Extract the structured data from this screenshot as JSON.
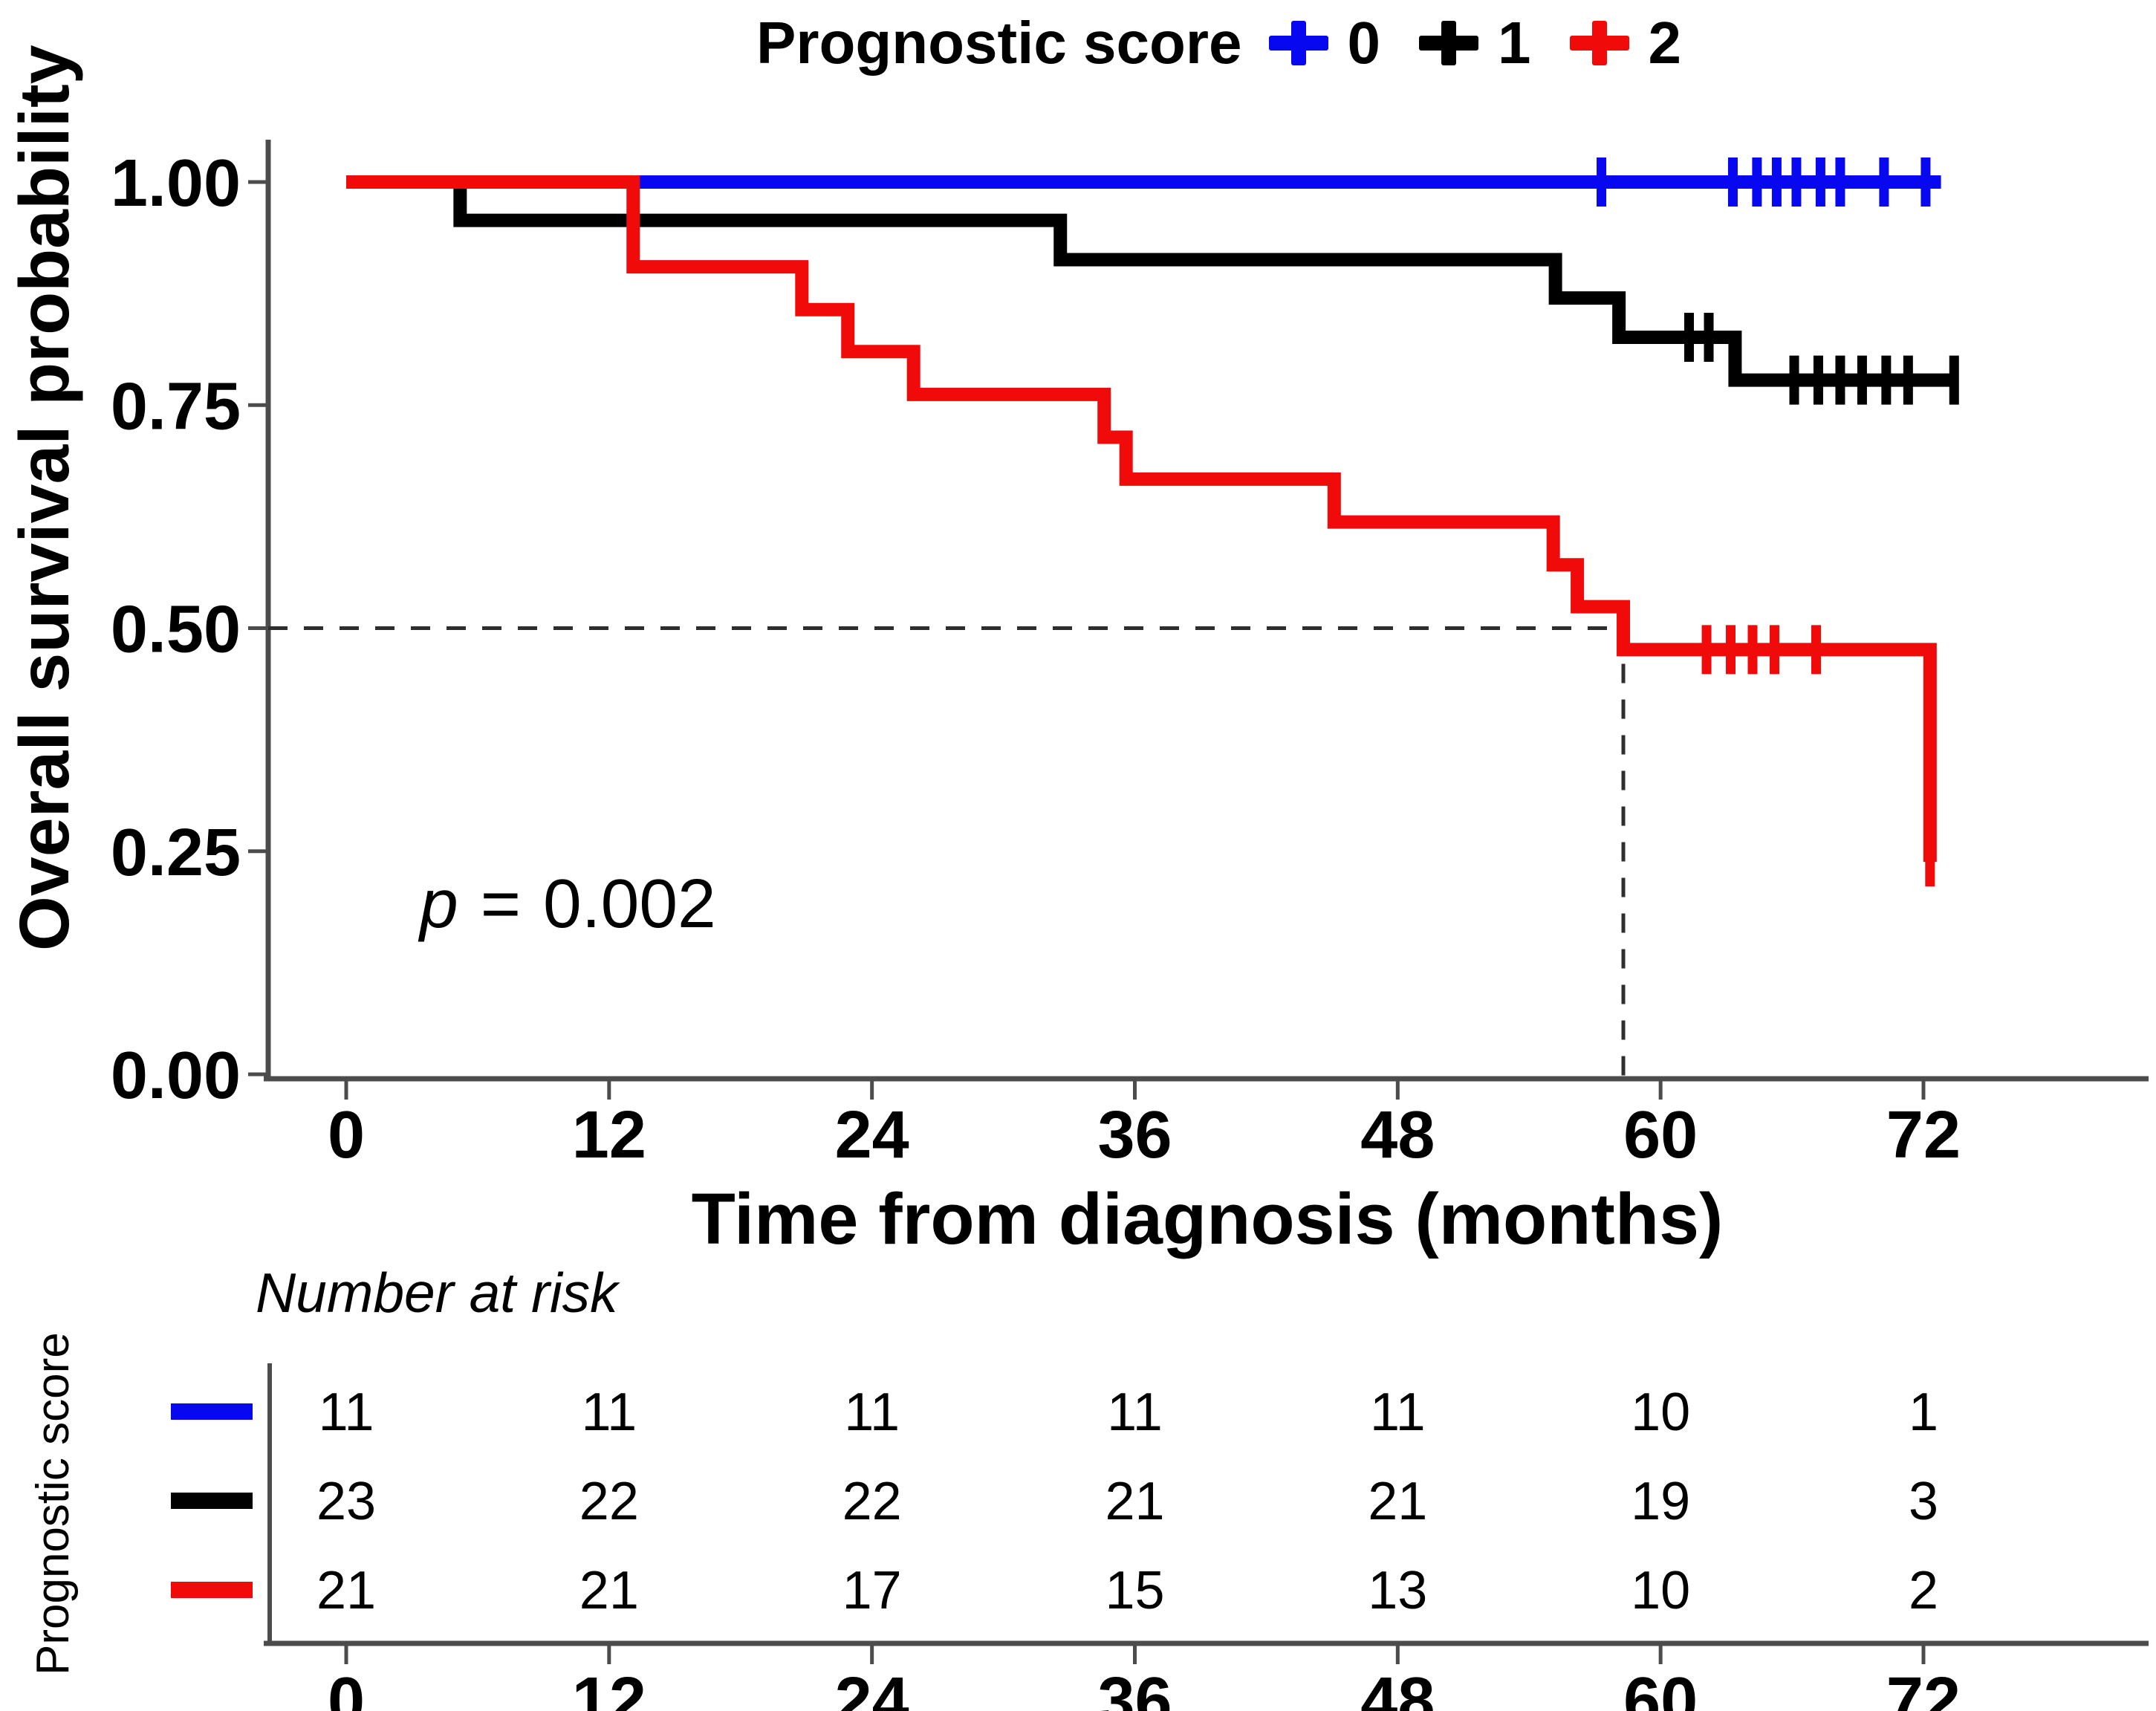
{
  "legend": {
    "title": "Prognostic score",
    "items": [
      {
        "label": "0",
        "color": "#0707F0"
      },
      {
        "label": "1",
        "color": "#000000"
      },
      {
        "label": "2",
        "color": "#F00A0A"
      }
    ]
  },
  "y_axis_title": "Overall survival probability",
  "x_axis_title": "Time from diagnosis (months)",
  "annotation": {
    "variable": "p",
    "operator": "=",
    "value": "0.002"
  },
  "risk_table_header": "Number at risk",
  "risk_table_axis_label": "Prognostic score",
  "chart_data": {
    "type": "line",
    "variant": "kaplan_meier_step",
    "title": "",
    "xlabel": "Time from diagnosis (months)",
    "ylabel": "Overall survival probability",
    "xlim": [
      0,
      76
    ],
    "ylim": [
      0,
      1.0
    ],
    "grid": false,
    "legend_position": "top",
    "legend_title": "Prognostic score",
    "x_ticks": [
      0,
      12,
      24,
      36,
      48,
      60,
      72
    ],
    "y_ticks": [
      "1.00",
      "0.75",
      "0.50",
      "0.25",
      "0.00"
    ],
    "y_tick_values": [
      1.0,
      0.75,
      0.5,
      0.25,
      0.0
    ],
    "p_value_text": "p = 0.002",
    "median_reference": {
      "time": 58.3,
      "probability": 0.5
    },
    "axis_color": "#4c4c4c",
    "dash_color": "#2e2e2e",
    "series": [
      {
        "name": "0",
        "color": "#0707F0",
        "steps": [
          [
            0,
            1.0
          ]
        ],
        "end_time": 72.8,
        "censors": [
          [
            57.3,
            1.0
          ],
          [
            63.3,
            1.0
          ],
          [
            64.4,
            1.0
          ],
          [
            65.3,
            1.0
          ],
          [
            66.2,
            1.0
          ],
          [
            67.3,
            1.0
          ],
          [
            68.2,
            1.0
          ],
          [
            70.2,
            1.0
          ],
          [
            72.1,
            1.0
          ]
        ]
      },
      {
        "name": "1",
        "color": "#000000",
        "steps": [
          [
            0,
            1.0
          ],
          [
            5.2,
            0.957
          ],
          [
            32.6,
            0.913
          ],
          [
            55.2,
            0.87
          ],
          [
            58.1,
            0.826
          ],
          [
            63.4,
            0.778
          ]
        ],
        "end_time": 73.5,
        "censors": [
          [
            61.3,
            0.826
          ],
          [
            62.2,
            0.826
          ],
          [
            66.1,
            0.778
          ],
          [
            67.2,
            0.778
          ],
          [
            68.2,
            0.778
          ],
          [
            69.2,
            0.778
          ],
          [
            70.3,
            0.778
          ],
          [
            71.3,
            0.778
          ],
          [
            73.4,
            0.778
          ]
        ]
      },
      {
        "name": "2",
        "color": "#F00A0A",
        "steps": [
          [
            0,
            1.0
          ],
          [
            13.1,
            0.905
          ],
          [
            20.8,
            0.857
          ],
          [
            22.9,
            0.81
          ],
          [
            25.9,
            0.762
          ],
          [
            34.6,
            0.714
          ],
          [
            35.6,
            0.667
          ],
          [
            45.1,
            0.619
          ],
          [
            55.1,
            0.571
          ],
          [
            56.2,
            0.524
          ],
          [
            58.3,
            0.476
          ],
          [
            72.3,
            0.238
          ]
        ],
        "end_time": 72.3,
        "censors": [
          [
            62.1,
            0.476
          ],
          [
            63.2,
            0.476
          ],
          [
            64.2,
            0.476
          ],
          [
            65.2,
            0.476
          ],
          [
            67.1,
            0.476
          ],
          [
            72.3,
            0.238
          ]
        ]
      }
    ],
    "risk_table": {
      "header": "Number at risk",
      "axis_label": "Prognostic score",
      "time_points": [
        0,
        12,
        24,
        36,
        48,
        60,
        72
      ],
      "rows": [
        {
          "group": "0",
          "color": "#0707F0",
          "counts": [
            11,
            11,
            11,
            11,
            11,
            10,
            1
          ]
        },
        {
          "group": "1",
          "color": "#000000",
          "counts": [
            23,
            22,
            22,
            21,
            21,
            19,
            3
          ]
        },
        {
          "group": "2",
          "color": "#F00A0A",
          "counts": [
            21,
            21,
            17,
            15,
            13,
            10,
            2
          ]
        }
      ]
    }
  }
}
